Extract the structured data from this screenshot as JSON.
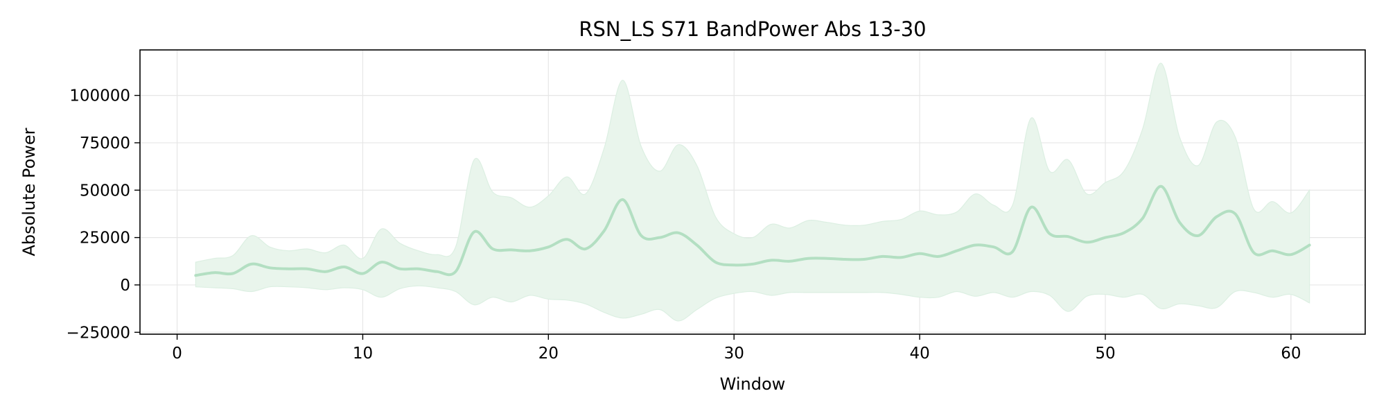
{
  "chart_data": {
    "type": "line",
    "title": "RSN_LS S71 BandPower Abs 13-30",
    "xlabel": "Window",
    "ylabel": "Absolute Power",
    "xlim": [
      -2,
      64
    ],
    "ylim": [
      -26000,
      124000
    ],
    "xticks": [
      0,
      10,
      20,
      30,
      40,
      50,
      60
    ],
    "yticks": [
      -25000,
      0,
      25000,
      50000,
      75000,
      100000
    ],
    "ytick_labels": [
      "−25000",
      "0",
      "25000",
      "50000",
      "75000",
      "100000"
    ],
    "grid": true,
    "line_color": "#b3dfc2",
    "band_color": "#e9f5ec",
    "band_edge_color": "#dcefe2",
    "series": [
      {
        "x": [
          1,
          2,
          3,
          4,
          5,
          6,
          7,
          8,
          9,
          10,
          11,
          12,
          13,
          14,
          15,
          16,
          17,
          18,
          19,
          20,
          21,
          22,
          23,
          24,
          25,
          26,
          27,
          28,
          29,
          30,
          31,
          32,
          33,
          34,
          35,
          36,
          37,
          38,
          39,
          40,
          41,
          42,
          43,
          44,
          45,
          46,
          47,
          48,
          49,
          50,
          51,
          52,
          53,
          54,
          55,
          56,
          57,
          58,
          59,
          60,
          61
        ],
        "mean": [
          5000,
          6500,
          6000,
          11000,
          9000,
          8500,
          8500,
          7000,
          9500,
          6000,
          12000,
          8500,
          8500,
          7000,
          7000,
          28000,
          19000,
          18500,
          18000,
          20000,
          24000,
          19000,
          28500,
          45000,
          26000,
          25000,
          27500,
          21000,
          12000,
          10500,
          11000,
          13000,
          12500,
          14000,
          14000,
          13500,
          13500,
          15000,
          14500,
          16500,
          15000,
          18000,
          21000,
          20000,
          17500,
          41000,
          27000,
          25500,
          22500,
          25000,
          27500,
          35000,
          52000,
          33000,
          26000,
          36000,
          37500,
          17000,
          18000,
          16000,
          21000
        ],
        "upper": [
          12000,
          14000,
          15500,
          26000,
          20000,
          18000,
          19000,
          17000,
          21000,
          14000,
          29500,
          22000,
          18000,
          16000,
          20000,
          66000,
          49000,
          46000,
          41000,
          47000,
          57000,
          48000,
          72000,
          108000,
          73000,
          60000,
          74000,
          63000,
          36000,
          27000,
          25000,
          32000,
          30000,
          34000,
          33000,
          31500,
          31500,
          33500,
          34500,
          39000,
          37000,
          38500,
          48000,
          42000,
          42000,
          88000,
          60000,
          66000,
          48000,
          54000,
          60000,
          82000,
          117000,
          78000,
          63000,
          86000,
          78000,
          40000,
          44000,
          38000,
          50000
        ],
        "lower": [
          -1000,
          -1500,
          -2000,
          -3500,
          -1000,
          -1000,
          -1500,
          -2500,
          -1500,
          -2500,
          -6500,
          -2000,
          -500,
          -1500,
          -3500,
          -10500,
          -6500,
          -9000,
          -5500,
          -7500,
          -8000,
          -10000,
          -14500,
          -17500,
          -15500,
          -13000,
          -19000,
          -13000,
          -7000,
          -4500,
          -3500,
          -5500,
          -4000,
          -4000,
          -4000,
          -4000,
          -4000,
          -4000,
          -5000,
          -6500,
          -6500,
          -3500,
          -6000,
          -4000,
          -6500,
          -3500,
          -5500,
          -14000,
          -6000,
          -5000,
          -6500,
          -5000,
          -12500,
          -10000,
          -11000,
          -12000,
          -3500,
          -4000,
          -6500,
          -5000,
          -9500
        ]
      }
    ]
  }
}
